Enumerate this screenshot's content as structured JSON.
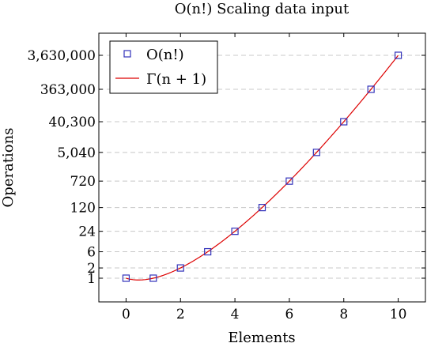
{
  "chart_data": {
    "type": "scatter",
    "title": "O(n!) Scaling data input",
    "xlabel": "Elements",
    "ylabel": "Operations",
    "xlim": [
      -1,
      11
    ],
    "x_ticks": [
      0,
      2,
      4,
      6,
      8,
      10
    ],
    "y_scale": "log",
    "y_ticks": [
      1,
      2,
      6,
      24,
      120,
      720,
      5040,
      40300,
      363000,
      3630000
    ],
    "y_tick_labels": [
      "1",
      "2",
      "6",
      "24",
      "120",
      "720",
      "5,040",
      "40,300",
      "363,000",
      "3,630,000"
    ],
    "grid": "horizontal-dashed",
    "legend_position": "top-left",
    "series": [
      {
        "name": "O(n!)",
        "kind": "markers",
        "marker": "square",
        "color": "#3333bb",
        "x": [
          0,
          1,
          2,
          3,
          4,
          5,
          6,
          7,
          8,
          9,
          10
        ],
        "y": [
          1,
          1,
          2,
          6,
          24,
          120,
          720,
          5040,
          40320,
          362880,
          3628800
        ]
      },
      {
        "name": "Γ(n + 1)",
        "kind": "line",
        "color": "#dd0000",
        "function": "gamma(n+1)",
        "x_range": [
          0,
          10
        ]
      }
    ]
  }
}
